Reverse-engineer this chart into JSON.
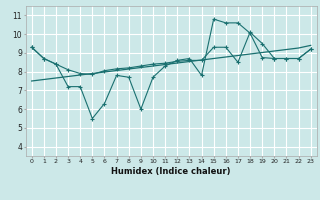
{
  "xlabel": "Humidex (Indice chaleur)",
  "bg_color": "#cce8e8",
  "line_color": "#1a7070",
  "grid_color": "#b8d8d8",
  "xlim": [
    -0.5,
    23.5
  ],
  "ylim": [
    3.5,
    11.5
  ],
  "xtick_labels": [
    "0",
    "1",
    "2",
    "3",
    "4",
    "5",
    "6",
    "7",
    "8",
    "9",
    "10",
    "11",
    "12",
    "13",
    "14",
    "15",
    "16",
    "17",
    "18",
    "19",
    "20",
    "21",
    "22",
    "23"
  ],
  "ytick_labels": [
    "4",
    "5",
    "6",
    "7",
    "8",
    "9",
    "10",
    "11"
  ],
  "line1_x": [
    0,
    1,
    2,
    3,
    4,
    5,
    6,
    7,
    8,
    9,
    10,
    11,
    12,
    13,
    14,
    15,
    16,
    17,
    18,
    19,
    20,
    21,
    22,
    23
  ],
  "line1_y": [
    9.3,
    8.7,
    8.4,
    8.1,
    7.9,
    7.85,
    8.05,
    8.15,
    8.2,
    8.3,
    8.4,
    8.45,
    8.55,
    8.6,
    8.6,
    9.3,
    9.3,
    8.5,
    10.1,
    9.5,
    8.7,
    8.7,
    8.7,
    9.2
  ],
  "line2_x": [
    0,
    1,
    2,
    3,
    4,
    5,
    6,
    7,
    8,
    9,
    10,
    11,
    12,
    13,
    14,
    15,
    16,
    17,
    18,
    19,
    20,
    21,
    22,
    23
  ],
  "line2_y": [
    9.3,
    8.7,
    8.4,
    7.2,
    7.2,
    5.5,
    6.3,
    7.8,
    7.7,
    6.0,
    7.7,
    8.3,
    8.6,
    8.7,
    7.8,
    10.8,
    10.6,
    10.6,
    10.05,
    8.75,
    8.7,
    8.7,
    8.7,
    9.2
  ],
  "line3_x": [
    0,
    1,
    2,
    3,
    4,
    5,
    6,
    7,
    8,
    9,
    10,
    11,
    12,
    13,
    14,
    15,
    16,
    17,
    18,
    19,
    20,
    21,
    22,
    23
  ],
  "line3_y": [
    7.5,
    7.58,
    7.66,
    7.74,
    7.82,
    7.9,
    7.98,
    8.06,
    8.14,
    8.22,
    8.3,
    8.38,
    8.46,
    8.54,
    8.62,
    8.7,
    8.78,
    8.86,
    8.94,
    9.02,
    9.1,
    9.18,
    9.26,
    9.4
  ]
}
